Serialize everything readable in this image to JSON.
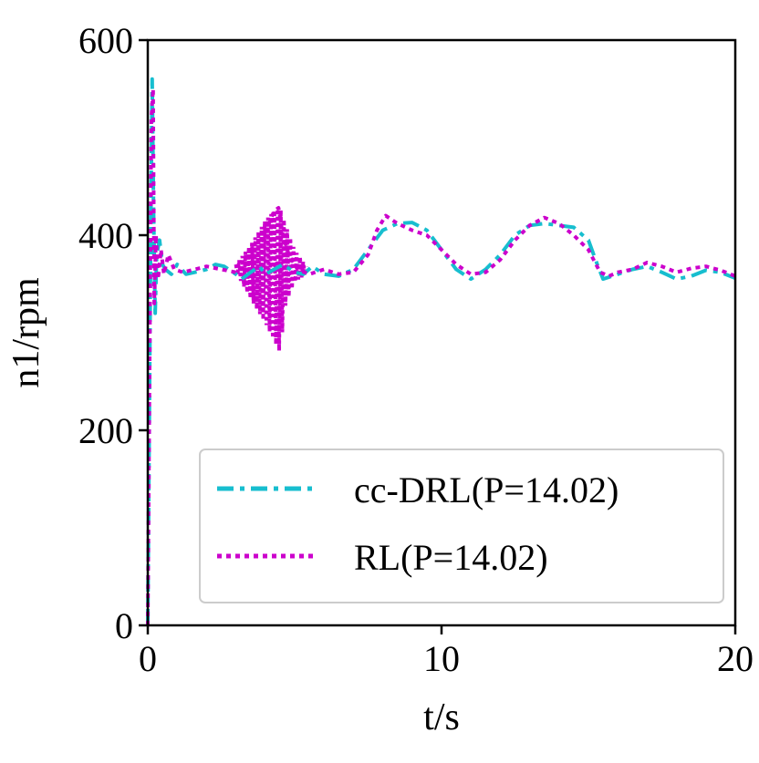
{
  "chart_data": {
    "type": "line",
    "xlabel": "t/s",
    "ylabel": "n1/rpm",
    "xlim": [
      0,
      20
    ],
    "ylim": [
      0,
      600
    ],
    "xticks": [
      0,
      10,
      20
    ],
    "yticks": [
      0,
      200,
      400,
      600
    ],
    "grid": false,
    "legend_position": "lower-right",
    "series": [
      {
        "name": "cc-DRL(P=14.02)",
        "color": "#17becf",
        "style": "dashdot",
        "x": [
          0.0,
          0.1,
          0.15,
          0.2,
          0.25,
          0.3,
          0.4,
          0.5,
          0.6,
          0.8,
          1.0,
          1.3,
          1.6,
          2.0,
          2.3,
          2.6,
          3.0,
          3.2,
          3.5,
          3.8,
          4.0,
          4.3,
          4.6,
          5.0,
          5.3,
          5.6,
          6.0,
          6.5,
          7.0,
          7.5,
          8.0,
          8.5,
          9.0,
          9.5,
          10.0,
          10.5,
          11.0,
          11.5,
          12.0,
          12.5,
          13.0,
          13.5,
          14.0,
          14.5,
          15.0,
          15.3,
          15.5,
          16.0,
          16.5,
          17.0,
          17.5,
          18.0,
          18.5,
          19.0,
          19.5,
          20.0
        ],
        "y": [
          0,
          400,
          560,
          420,
          320,
          380,
          395,
          370,
          365,
          360,
          370,
          360,
          362,
          365,
          370,
          368,
          360,
          355,
          362,
          368,
          360,
          365,
          370,
          362,
          360,
          368,
          360,
          358,
          365,
          385,
          405,
          412,
          413,
          405,
          385,
          365,
          355,
          365,
          380,
          400,
          410,
          412,
          410,
          408,
          395,
          370,
          355,
          360,
          365,
          368,
          362,
          355,
          358,
          364,
          362,
          356
        ]
      },
      {
        "name": "RL(P=14.02)",
        "color": "#cc00cc",
        "style": "dotted",
        "x": [
          0.0,
          0.12,
          0.18,
          0.22,
          0.28,
          0.35,
          0.45,
          0.55,
          0.7,
          0.9,
          1.2,
          1.6,
          2.0,
          2.5,
          3.0,
          3.5,
          3.8,
          4.1,
          4.3,
          4.45,
          4.6,
          4.8,
          5.1,
          5.5,
          6.0,
          6.5,
          7.0,
          7.5,
          7.8,
          8.1,
          8.5,
          9.0,
          9.5,
          10.0,
          10.5,
          11.0,
          11.5,
          12.0,
          12.5,
          13.0,
          13.5,
          14.0,
          14.5,
          15.0,
          15.4,
          15.7,
          16.0,
          16.5,
          17.0,
          17.5,
          18.0,
          18.5,
          19.0,
          19.5,
          20.0
        ],
        "y": [
          0,
          520,
          550,
          330,
          400,
          355,
          385,
          360,
          380,
          365,
          362,
          365,
          368,
          365,
          362,
          372,
          390,
          410,
          425,
          428,
          400,
          380,
          365,
          360,
          365,
          360,
          362,
          380,
          405,
          420,
          412,
          405,
          400,
          385,
          370,
          360,
          362,
          375,
          395,
          410,
          418,
          412,
          400,
          385,
          362,
          358,
          362,
          365,
          372,
          368,
          362,
          366,
          368,
          364,
          358
        ]
      }
    ],
    "oscillation_envelope": {
      "series": "RL(P=14.02)",
      "x": [
        3.0,
        3.5,
        4.0,
        4.3,
        4.5,
        4.7,
        5.0,
        5.4
      ],
      "upper": [
        370,
        390,
        415,
        425,
        428,
        410,
        385,
        368
      ],
      "lower": [
        362,
        335,
        310,
        292,
        280,
        330,
        352,
        360
      ]
    }
  }
}
